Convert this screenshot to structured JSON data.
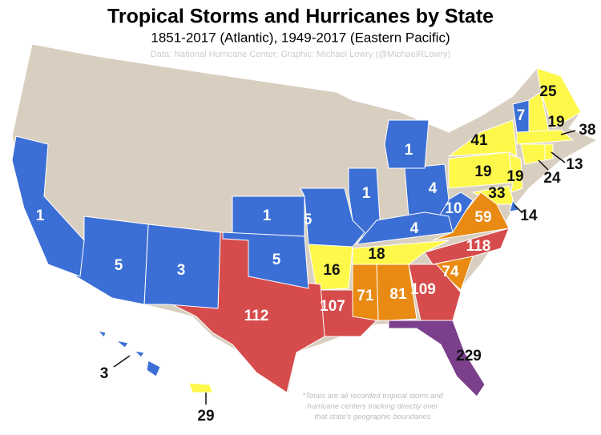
{
  "title": "Tropical Storms and Hurricanes by State",
  "subtitle": "1851-2017 (Atlantic), 1949-2017 (Eastern Pacific)",
  "source": "Data: National Hurricane Center; Graphic: Michael Lowry (@MichaelRLowry)",
  "footnote": [
    "*Totals are all recorded tropical storm and",
    "hurricane centers tracking directly over",
    "that state's geographic boundaries"
  ],
  "map": {
    "regions": [
      {
        "value": 25,
        "color": "#fdf84a",
        "label_color": "#111"
      },
      {
        "value": 7,
        "color": "#3b6fd6",
        "label_color": "#fff"
      },
      {
        "value": 19,
        "color": "#fdf84a",
        "label_color": "#111"
      },
      {
        "value": 41,
        "color": "#fdf84a",
        "label_color": "#111"
      },
      {
        "value": 38,
        "color": "#fdf84a",
        "label_color": "#111"
      },
      {
        "value": 13,
        "color": "#fdf84a",
        "label_color": "#111"
      },
      {
        "value": 24,
        "color": "#fdf84a",
        "label_color": "#111"
      },
      {
        "value": 19,
        "color": "#fdf84a",
        "label_color": "#111"
      },
      {
        "value": 19,
        "color": "#fdf84a",
        "label_color": "#111"
      },
      {
        "value": 33,
        "color": "#fdf84a",
        "label_color": "#111"
      },
      {
        "value": 14,
        "color": "#3b6fd6",
        "label_color": "#111"
      },
      {
        "value": 59,
        "color": "#e98a12",
        "label_color": "#fff"
      },
      {
        "value": 10,
        "color": "#3b6fd6",
        "label_color": "#fff"
      },
      {
        "value": 4,
        "color": "#3b6fd6",
        "label_color": "#fff"
      },
      {
        "value": 1,
        "color": "#3b6fd6",
        "label_color": "#fff"
      },
      {
        "value": 1,
        "color": "#3b6fd6",
        "label_color": "#fff"
      },
      {
        "value": 4,
        "color": "#3b6fd6",
        "label_color": "#fff"
      },
      {
        "value": 18,
        "color": "#fdf84a",
        "label_color": "#111"
      },
      {
        "value": 118,
        "color": "#d64b4b",
        "label_color": "#fff"
      },
      {
        "value": 74,
        "color": "#e98a12",
        "label_color": "#fff"
      },
      {
        "value": 109,
        "color": "#d64b4b",
        "label_color": "#fff"
      },
      {
        "value": 81,
        "color": "#e98a12",
        "label_color": "#fff"
      },
      {
        "value": 71,
        "color": "#e98a12",
        "label_color": "#fff"
      },
      {
        "value": 107,
        "color": "#d64b4b",
        "label_color": "#fff"
      },
      {
        "value": 16,
        "color": "#fdf84a",
        "label_color": "#111"
      },
      {
        "value": 112,
        "color": "#d64b4b",
        "label_color": "#fff"
      },
      {
        "value": 229,
        "color": "#7b3f8c",
        "label_color": "#111"
      },
      {
        "value": 5,
        "color": "#3b6fd6",
        "label_color": "#fff"
      },
      {
        "value": 1,
        "color": "#3b6fd6",
        "label_color": "#fff"
      },
      {
        "value": 5,
        "color": "#3b6fd6",
        "label_color": "#fff"
      },
      {
        "value": 3,
        "color": "#3b6fd6",
        "label_color": "#fff"
      },
      {
        "value": 5,
        "color": "#3b6fd6",
        "label_color": "#fff"
      },
      {
        "value": 1,
        "color": "#3b6fd6",
        "label_color": "#fff"
      },
      {
        "value": 3,
        "color": "#3b6fd6",
        "label_color": "#111"
      },
      {
        "value": 29,
        "color": "#fdf84a",
        "label_color": "#111"
      }
    ]
  }
}
